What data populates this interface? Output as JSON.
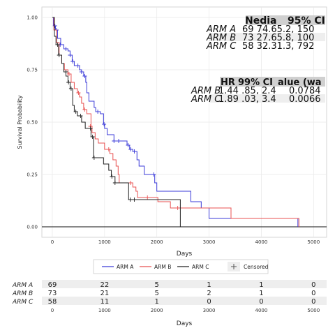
{
  "chart_data": {
    "type": "line",
    "subtype": "kaplan-meier",
    "ylabel": "Survival Probability",
    "xlabel": "Days",
    "xlim": [
      -200,
      5250
    ],
    "ylim": [
      -0.05,
      1.05
    ],
    "x_ticks": [
      0,
      1000,
      2000,
      3000,
      4000,
      5000
    ],
    "y_ticks": [
      "0.00",
      "0.25",
      "0.50",
      "0.75",
      "1.00"
    ],
    "y_tick_values": [
      0,
      0.25,
      0.5,
      0.75,
      1.0
    ],
    "grid": true,
    "legend_position": "bottom",
    "legend_entries": [
      "ARM A",
      "ARM B",
      "ARM C",
      "Censored"
    ],
    "colors": {
      "ARM A": "#3a3ad8",
      "ARM B": "#e85050",
      "ARM C": "#222222",
      "censor": "#555555"
    },
    "median_table": {
      "header": [
        "Nedia",
        "95% CI"
      ],
      "rows": [
        {
          "label": "ARM A",
          "text": "69 74.65.2, 150"
        },
        {
          "label": "ARM B",
          "text": "73 27.65.8, 100"
        },
        {
          "label": "ARM C",
          "text": "58 32.31.3, 792"
        }
      ]
    },
    "hr_table": {
      "header": [
        "HR",
        "99% CI",
        "alue (wa"
      ],
      "rows": [
        {
          "label": "ARM B",
          "text": "1.44 .85, 2.4",
          "p": "0.0784"
        },
        {
          "label": "ARM C",
          "text": "1.89 .03, 3.4",
          "p": "0.0066"
        }
      ]
    },
    "series": [
      {
        "name": "ARM A",
        "steps": [
          [
            0,
            1.0
          ],
          [
            20,
            0.96
          ],
          [
            60,
            0.94
          ],
          [
            100,
            0.9
          ],
          [
            160,
            0.87
          ],
          [
            220,
            0.85
          ],
          [
            300,
            0.84
          ],
          [
            340,
            0.82
          ],
          [
            380,
            0.79
          ],
          [
            420,
            0.77
          ],
          [
            520,
            0.75
          ],
          [
            560,
            0.74
          ],
          [
            600,
            0.72
          ],
          [
            640,
            0.69
          ],
          [
            660,
            0.64
          ],
          [
            700,
            0.6
          ],
          [
            800,
            0.57
          ],
          [
            830,
            0.55
          ],
          [
            920,
            0.54
          ],
          [
            980,
            0.49
          ],
          [
            1000,
            0.47
          ],
          [
            1050,
            0.44
          ],
          [
            1180,
            0.41
          ],
          [
            1430,
            0.39
          ],
          [
            1480,
            0.37
          ],
          [
            1540,
            0.36
          ],
          [
            1620,
            0.32
          ],
          [
            1660,
            0.29
          ],
          [
            1760,
            0.25
          ],
          [
            1960,
            0.21
          ],
          [
            2000,
            0.17
          ],
          [
            2650,
            0.12
          ],
          [
            2850,
            0.09
          ],
          [
            3000,
            0.04
          ],
          [
            4700,
            0.0
          ]
        ],
        "censored": [
          [
            50,
            0.96
          ],
          [
            80,
            0.94
          ],
          [
            150,
            0.87
          ],
          [
            260,
            0.85
          ],
          [
            340,
            0.82
          ],
          [
            390,
            0.79
          ],
          [
            490,
            0.77
          ],
          [
            560,
            0.74
          ],
          [
            620,
            0.72
          ],
          [
            870,
            0.55
          ],
          [
            990,
            0.49
          ],
          [
            1180,
            0.41
          ],
          [
            1270,
            0.41
          ],
          [
            1450,
            0.39
          ],
          [
            1500,
            0.37
          ],
          [
            1570,
            0.36
          ],
          [
            1940,
            0.25
          ]
        ]
      },
      {
        "name": "ARM B",
        "steps": [
          [
            0,
            1.0
          ],
          [
            30,
            0.94
          ],
          [
            80,
            0.88
          ],
          [
            130,
            0.82
          ],
          [
            180,
            0.78
          ],
          [
            230,
            0.75
          ],
          [
            300,
            0.73
          ],
          [
            360,
            0.69
          ],
          [
            420,
            0.66
          ],
          [
            480,
            0.64
          ],
          [
            520,
            0.62
          ],
          [
            560,
            0.59
          ],
          [
            600,
            0.56
          ],
          [
            660,
            0.54
          ],
          [
            740,
            0.48
          ],
          [
            760,
            0.45
          ],
          [
            820,
            0.42
          ],
          [
            880,
            0.4
          ],
          [
            1000,
            0.37
          ],
          [
            1100,
            0.35
          ],
          [
            1160,
            0.32
          ],
          [
            1220,
            0.29
          ],
          [
            1260,
            0.25
          ],
          [
            1280,
            0.21
          ],
          [
            1540,
            0.19
          ],
          [
            1600,
            0.17
          ],
          [
            1630,
            0.14
          ],
          [
            1700,
            0.14
          ],
          [
            2020,
            0.12
          ],
          [
            2260,
            0.09
          ],
          [
            3420,
            0.04
          ],
          [
            4720,
            0.0
          ]
        ],
        "censored": [
          [
            320,
            0.73
          ],
          [
            500,
            0.64
          ],
          [
            620,
            0.56
          ],
          [
            730,
            0.48
          ],
          [
            1080,
            0.37
          ],
          [
            1500,
            0.21
          ],
          [
            1820,
            0.14
          ],
          [
            2400,
            0.09
          ]
        ]
      },
      {
        "name": "ARM C",
        "steps": [
          [
            0,
            1.0
          ],
          [
            40,
            0.91
          ],
          [
            70,
            0.87
          ],
          [
            120,
            0.82
          ],
          [
            180,
            0.78
          ],
          [
            220,
            0.74
          ],
          [
            260,
            0.72
          ],
          [
            300,
            0.69
          ],
          [
            340,
            0.66
          ],
          [
            390,
            0.58
          ],
          [
            420,
            0.55
          ],
          [
            480,
            0.53
          ],
          [
            560,
            0.5
          ],
          [
            630,
            0.47
          ],
          [
            740,
            0.43
          ],
          [
            790,
            0.33
          ],
          [
            980,
            0.3
          ],
          [
            1080,
            0.27
          ],
          [
            1130,
            0.24
          ],
          [
            1200,
            0.21
          ],
          [
            1460,
            0.13
          ],
          [
            1600,
            0.13
          ],
          [
            2450,
            0.0
          ]
        ],
        "censored": [
          [
            100,
            0.87
          ],
          [
            130,
            0.82
          ],
          [
            260,
            0.74
          ],
          [
            310,
            0.69
          ],
          [
            360,
            0.66
          ],
          [
            450,
            0.55
          ],
          [
            540,
            0.53
          ],
          [
            730,
            0.47
          ],
          [
            770,
            0.43
          ],
          [
            800,
            0.33
          ],
          [
            1140,
            0.24
          ],
          [
            1200,
            0.21
          ],
          [
            1490,
            0.13
          ],
          [
            1570,
            0.13
          ]
        ]
      }
    ],
    "risk_table": {
      "row_labels": [
        "ARM A",
        "ARM B",
        "ARM C"
      ],
      "columns": [
        0,
        1000,
        2000,
        3000,
        4000,
        5000
      ],
      "values": [
        [
          69,
          22,
          5,
          1,
          1,
          0
        ],
        [
          73,
          21,
          5,
          2,
          1,
          0
        ],
        [
          58,
          11,
          1,
          0,
          0,
          0
        ]
      ],
      "xlabel": "Days"
    }
  }
}
